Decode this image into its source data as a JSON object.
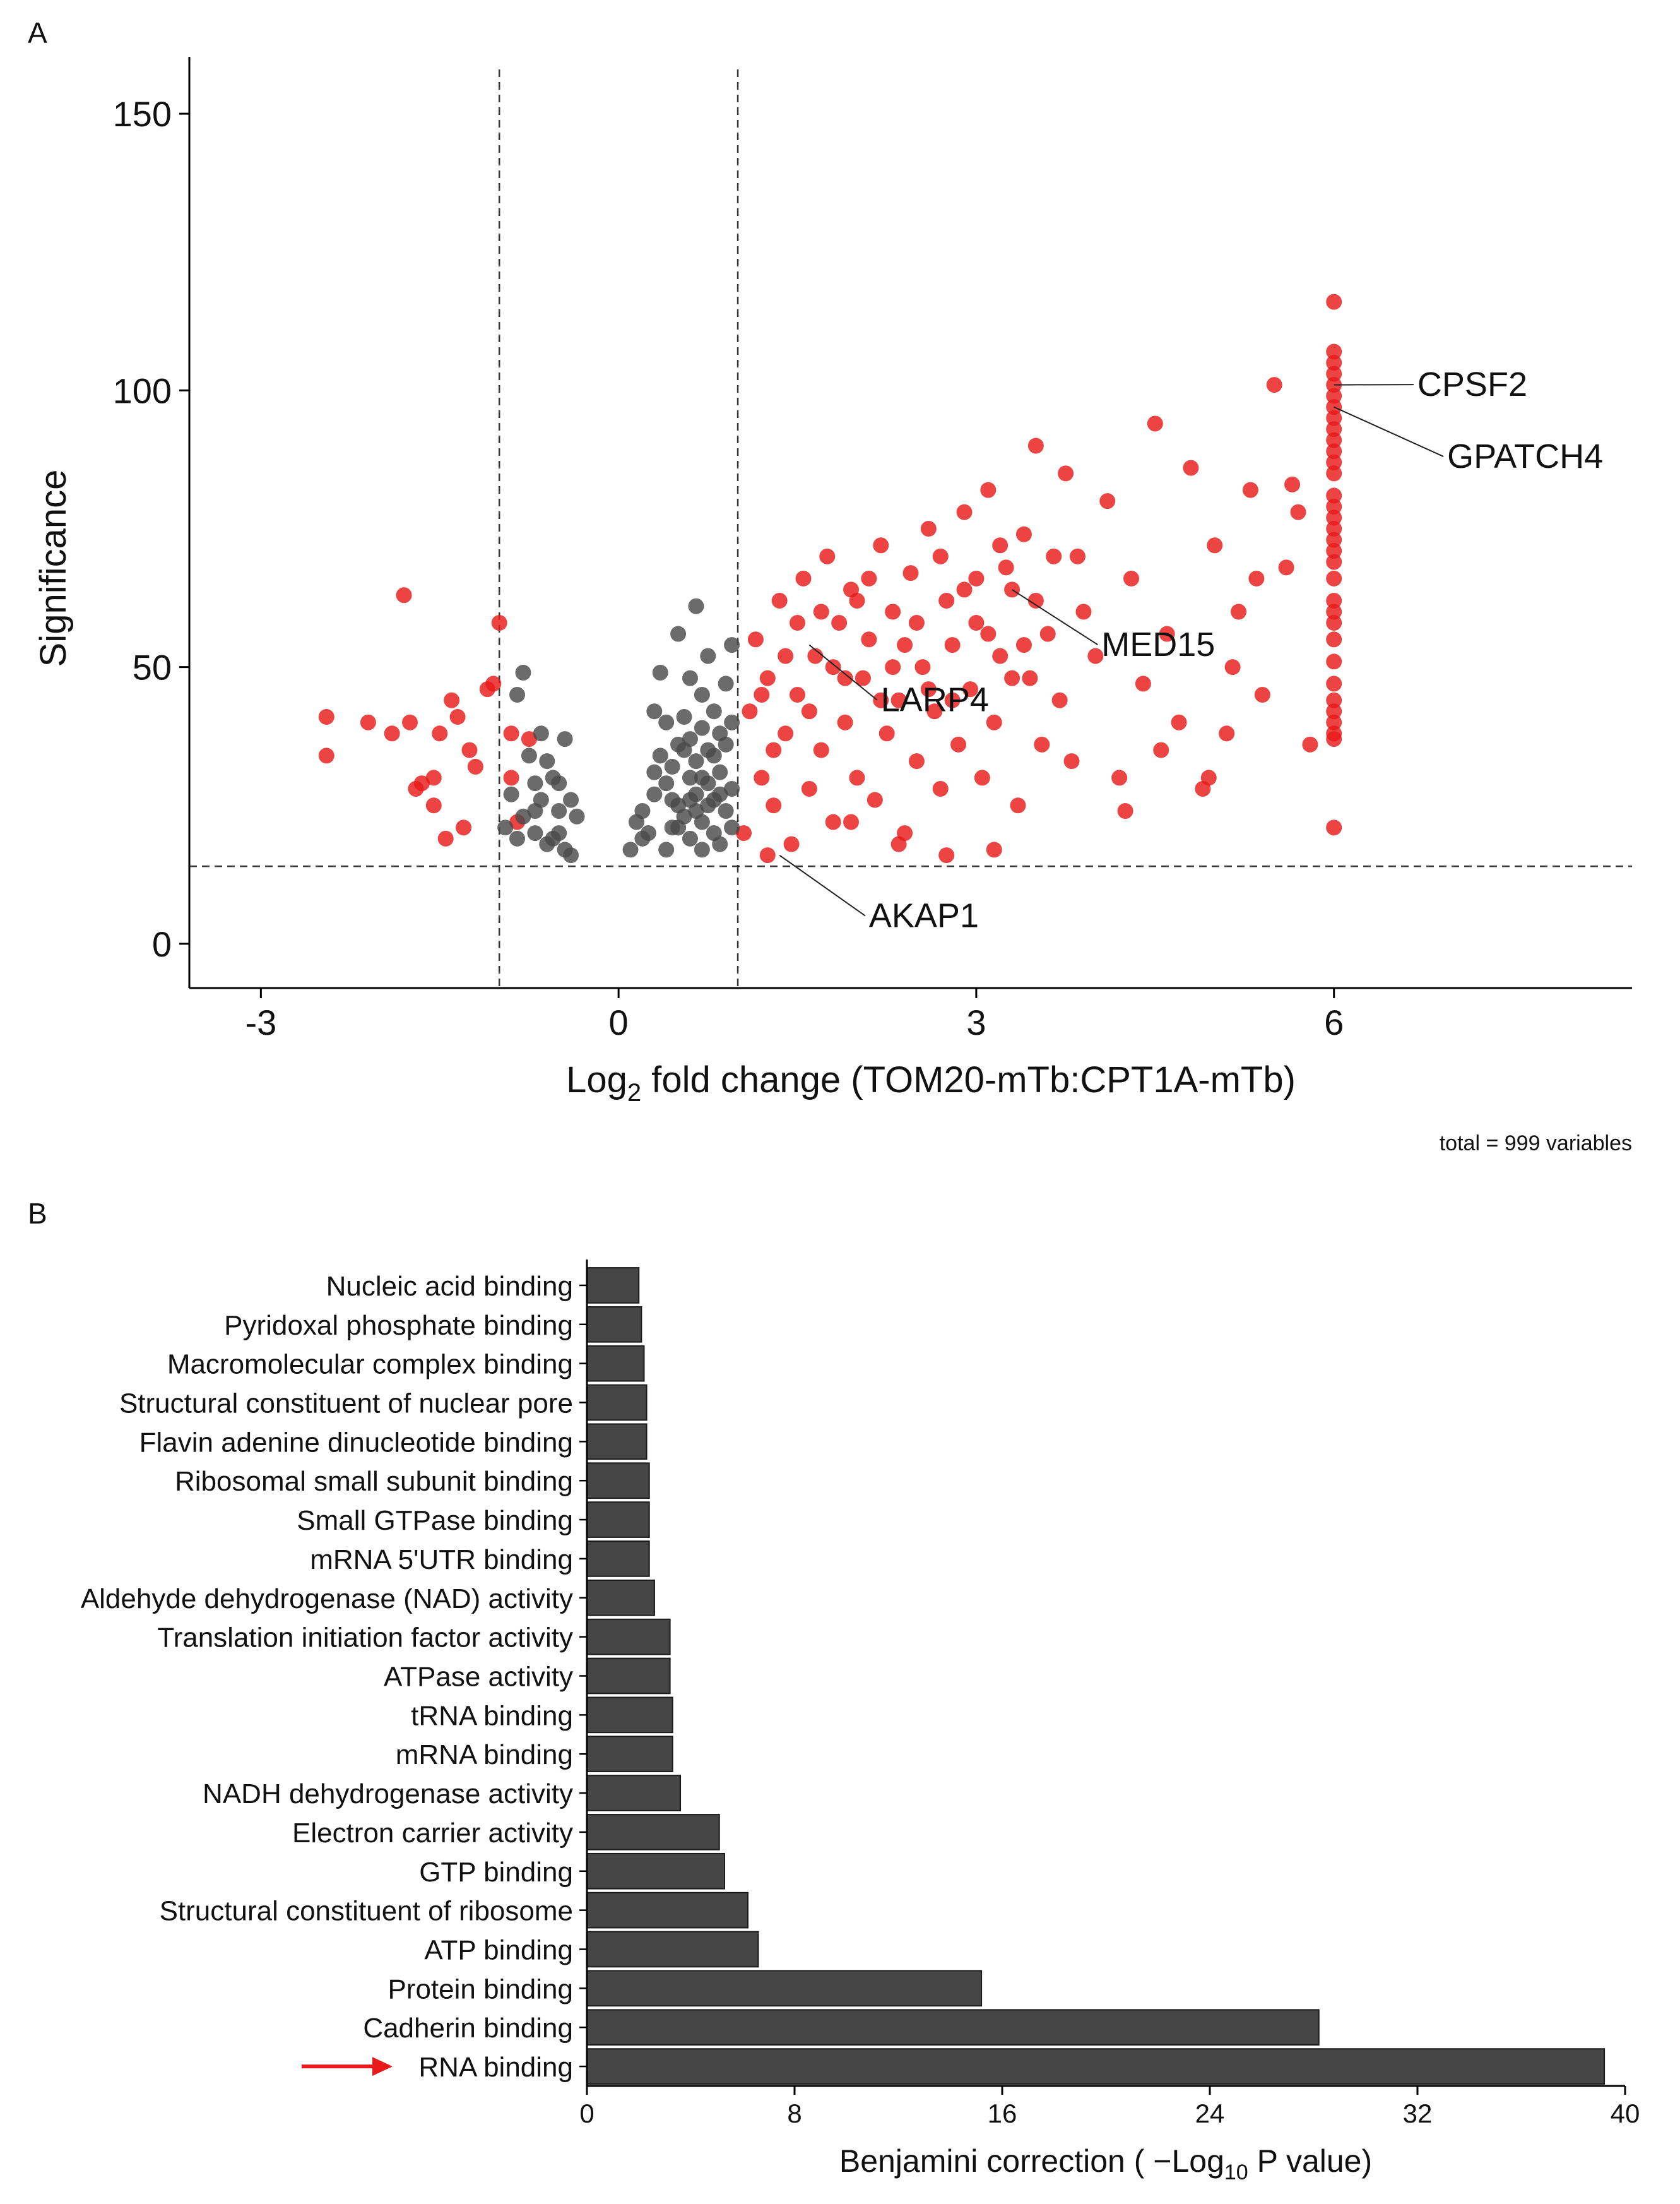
{
  "colors": {
    "up": "#e81a1a",
    "ns": "#4a4a4a",
    "bar": "#454545",
    "arrow": "#e81a1a",
    "axis": "#000000"
  },
  "chart_data": [
    {
      "panel_label": "A",
      "type": "scatter",
      "title": "",
      "xlabel_main": "Log",
      "xlabel_sub": "2",
      "xlabel_rest": " fold change (TOM20-mTb:CPT1A-mTb)",
      "ylabel": "Significance",
      "xlim": [
        -3.6,
        8.5
      ],
      "ylim": [
        -8,
        158
      ],
      "xticks": [
        -3,
        0,
        3,
        6
      ],
      "yticks": [
        0,
        50,
        100,
        150
      ],
      "vlines": [
        -1,
        1
      ],
      "hline": 14,
      "footnote": "total = 999 variables",
      "labels": [
        {
          "text": "CPSF2",
          "x": 6.0,
          "y": 101,
          "tx": 6.7,
          "ty": 99
        },
        {
          "text": "GPATCH4",
          "x": 6.0,
          "y": 97,
          "tx": 6.95,
          "ty": 86
        },
        {
          "text": "MED15",
          "x": 3.3,
          "y": 64,
          "tx": 4.05,
          "ty": 52
        },
        {
          "text": "LARP4",
          "x": 1.6,
          "y": 54,
          "tx": 2.2,
          "ty": 42
        },
        {
          "text": "AKAP1",
          "x": 1.35,
          "y": 16,
          "tx": 2.1,
          "ty": 3
        }
      ],
      "series": [
        {
          "name": "",
          "color_key": "up",
          "points": [
            [
              -2.45,
              41
            ],
            [
              -2.45,
              34
            ],
            [
              -2.1,
              40
            ],
            [
              -1.9,
              38
            ],
            [
              -1.75,
              40
            ],
            [
              -1.8,
              63
            ],
            [
              -1.65,
              29
            ],
            [
              -1.55,
              30
            ],
            [
              -1.55,
              25
            ],
            [
              -1.5,
              38
            ],
            [
              -1.4,
              44
            ],
            [
              -1.35,
              41
            ],
            [
              -1.3,
              21
            ],
            [
              -1.45,
              19
            ],
            [
              -1.2,
              32
            ],
            [
              -1.1,
              46
            ],
            [
              -1.05,
              47
            ],
            [
              -1.0,
              58
            ],
            [
              -0.9,
              38
            ],
            [
              -0.9,
              30
            ],
            [
              -0.85,
              22
            ],
            [
              -0.75,
              37
            ],
            [
              -1.7,
              28
            ],
            [
              -1.25,
              35
            ],
            [
              1.05,
              20
            ],
            [
              1.1,
              42
            ],
            [
              1.15,
              55
            ],
            [
              1.2,
              30
            ],
            [
              1.25,
              48
            ],
            [
              1.3,
              25
            ],
            [
              1.35,
              62
            ],
            [
              1.4,
              38
            ],
            [
              1.45,
              18
            ],
            [
              1.5,
              45
            ],
            [
              1.55,
              66
            ],
            [
              1.6,
              28
            ],
            [
              1.65,
              52
            ],
            [
              1.7,
              35
            ],
            [
              1.75,
              70
            ],
            [
              1.8,
              22
            ],
            [
              1.85,
              58
            ],
            [
              1.9,
              40
            ],
            [
              1.95,
              64
            ],
            [
              2.0,
              30
            ],
            [
              2.05,
              48
            ],
            [
              2.1,
              55
            ],
            [
              2.15,
              26
            ],
            [
              2.2,
              72
            ],
            [
              2.25,
              38
            ],
            [
              2.3,
              60
            ],
            [
              2.35,
              44
            ],
            [
              2.4,
              20
            ],
            [
              2.45,
              67
            ],
            [
              2.5,
              33
            ],
            [
              2.55,
              50
            ],
            [
              2.6,
              75
            ],
            [
              2.65,
              42
            ],
            [
              2.7,
              28
            ],
            [
              2.75,
              62
            ],
            [
              2.8,
              54
            ],
            [
              2.85,
              36
            ],
            [
              2.9,
              78
            ],
            [
              2.95,
              46
            ],
            [
              3.0,
              58
            ],
            [
              3.05,
              30
            ],
            [
              3.1,
              82
            ],
            [
              3.15,
              40
            ],
            [
              3.2,
              52
            ],
            [
              3.25,
              68
            ],
            [
              3.3,
              64
            ],
            [
              3.35,
              25
            ],
            [
              3.4,
              74
            ],
            [
              3.45,
              48
            ],
            [
              3.5,
              90
            ],
            [
              3.55,
              36
            ],
            [
              3.6,
              56
            ],
            [
              3.65,
              70
            ],
            [
              3.7,
              44
            ],
            [
              3.75,
              85
            ],
            [
              3.8,
              33
            ],
            [
              3.9,
              60
            ],
            [
              4.0,
              52
            ],
            [
              4.1,
              80
            ],
            [
              4.2,
              30
            ],
            [
              4.3,
              66
            ],
            [
              4.4,
              47
            ],
            [
              4.5,
              94
            ],
            [
              4.6,
              56
            ],
            [
              4.7,
              40
            ],
            [
              4.8,
              86
            ],
            [
              4.9,
              28
            ],
            [
              5.0,
              72
            ],
            [
              5.1,
              38
            ],
            [
              5.2,
              60
            ],
            [
              5.3,
              82
            ],
            [
              5.4,
              45
            ],
            [
              5.5,
              101
            ],
            [
              5.6,
              68
            ],
            [
              5.7,
              78
            ],
            [
              5.8,
              36
            ],
            [
              5.15,
              50
            ],
            [
              4.25,
              24
            ],
            [
              3.85,
              70
            ],
            [
              3.15,
              17
            ],
            [
              2.35,
              18
            ],
            [
              1.95,
              22
            ],
            [
              1.25,
              16
            ],
            [
              2.75,
              16
            ],
            [
              4.55,
              35
            ],
            [
              4.95,
              30
            ],
            [
              5.35,
              66
            ],
            [
              5.65,
              83
            ],
            [
              1.3,
              35
            ],
            [
              1.5,
              58
            ],
            [
              1.7,
              60
            ],
            [
              1.9,
              48
            ],
            [
              2.1,
              66
            ],
            [
              2.3,
              50
            ],
            [
              2.5,
              58
            ],
            [
              2.7,
              70
            ],
            [
              2.9,
              64
            ],
            [
              3.1,
              56
            ],
            [
              3.3,
              48
            ],
            [
              3.5,
              62
            ],
            [
              1.2,
              45
            ],
            [
              1.4,
              52
            ],
            [
              1.6,
              42
            ],
            [
              1.8,
              50
            ],
            [
              2.0,
              62
            ],
            [
              2.2,
              44
            ],
            [
              2.4,
              54
            ],
            [
              2.6,
              46
            ],
            [
              2.8,
              44
            ],
            [
              3.0,
              66
            ],
            [
              3.2,
              72
            ],
            [
              3.4,
              54
            ],
            [
              6,
              116
            ],
            [
              6,
              107
            ],
            [
              6,
              105
            ],
            [
              6,
              103
            ],
            [
              6,
              101
            ],
            [
              6,
              99
            ],
            [
              6,
              97
            ],
            [
              6,
              95
            ],
            [
              6,
              93
            ],
            [
              6,
              91
            ],
            [
              6,
              89
            ],
            [
              6,
              87
            ],
            [
              6,
              85
            ],
            [
              6,
              81
            ],
            [
              6,
              79
            ],
            [
              6,
              77
            ],
            [
              6,
              75
            ],
            [
              6,
              73
            ],
            [
              6,
              71
            ],
            [
              6,
              69
            ],
            [
              6,
              66
            ],
            [
              6,
              62
            ],
            [
              6,
              60
            ],
            [
              6,
              58
            ],
            [
              6,
              55
            ],
            [
              6,
              51
            ],
            [
              6,
              47
            ],
            [
              6,
              44
            ],
            [
              6,
              42
            ],
            [
              6,
              40
            ],
            [
              6,
              38
            ],
            [
              6,
              37
            ],
            [
              6,
              21
            ]
          ]
        },
        {
          "name": "",
          "color_key": "ns",
          "points": [
            [
              -0.95,
              21
            ],
            [
              -0.9,
              27
            ],
            [
              -0.85,
              45
            ],
            [
              -0.8,
              49
            ],
            [
              -0.75,
              34
            ],
            [
              -0.7,
              29
            ],
            [
              -0.65,
              38
            ],
            [
              -0.6,
              18
            ],
            [
              -0.55,
              30
            ],
            [
              -0.5,
              24
            ],
            [
              -0.45,
              37
            ],
            [
              -0.4,
              16
            ],
            [
              -0.85,
              19
            ],
            [
              -0.7,
              20
            ],
            [
              -0.65,
              26
            ],
            [
              -0.55,
              19
            ],
            [
              -0.5,
              20
            ],
            [
              -0.45,
              17
            ],
            [
              -0.6,
              33
            ],
            [
              -0.35,
              23
            ],
            [
              -0.8,
              23
            ],
            [
              -0.7,
              24
            ],
            [
              -0.5,
              29
            ],
            [
              -0.4,
              26
            ],
            [
              0.1,
              17
            ],
            [
              0.15,
              22
            ],
            [
              0.2,
              24
            ],
            [
              0.25,
              20
            ],
            [
              0.3,
              27
            ],
            [
              0.3,
              42
            ],
            [
              0.35,
              34
            ],
            [
              0.35,
              49
            ],
            [
              0.4,
              17
            ],
            [
              0.4,
              29
            ],
            [
              0.4,
              40
            ],
            [
              0.45,
              21
            ],
            [
              0.45,
              32
            ],
            [
              0.5,
              36
            ],
            [
              0.5,
              25
            ],
            [
              0.5,
              56
            ],
            [
              0.55,
              23
            ],
            [
              0.55,
              41
            ],
            [
              0.6,
              19
            ],
            [
              0.6,
              30
            ],
            [
              0.6,
              37
            ],
            [
              0.6,
              48
            ],
            [
              0.65,
              27
            ],
            [
              0.65,
              33
            ],
            [
              0.65,
              61
            ],
            [
              0.7,
              17
            ],
            [
              0.7,
              22
            ],
            [
              0.7,
              39
            ],
            [
              0.7,
              45
            ],
            [
              0.75,
              25
            ],
            [
              0.75,
              29
            ],
            [
              0.75,
              52
            ],
            [
              0.8,
              20
            ],
            [
              0.8,
              34
            ],
            [
              0.8,
              42
            ],
            [
              0.85,
              18
            ],
            [
              0.85,
              31
            ],
            [
              0.85,
              38
            ],
            [
              0.9,
              24
            ],
            [
              0.9,
              36
            ],
            [
              0.9,
              47
            ],
            [
              0.95,
              21
            ],
            [
              0.95,
              28
            ],
            [
              0.95,
              40
            ],
            [
              0.95,
              54
            ],
            [
              0.3,
              31
            ],
            [
              0.2,
              19
            ],
            [
              0.45,
              26
            ],
            [
              0.55,
              35
            ],
            [
              0.65,
              24
            ],
            [
              0.75,
              35
            ],
            [
              0.85,
              27
            ],
            [
              0.5,
              21
            ],
            [
              0.6,
              26
            ],
            [
              0.7,
              30
            ],
            [
              0.8,
              26
            ]
          ]
        }
      ]
    },
    {
      "panel_label": "B",
      "type": "bar",
      "orientation": "horizontal",
      "title": "",
      "xlabel_main": "Benjamini correction ( −Log",
      "xlabel_sub": "10",
      "xlabel_rest": " P value)",
      "ylabel": "",
      "xlim": [
        0,
        40
      ],
      "xticks": [
        0,
        8,
        16,
        24,
        32,
        40
      ],
      "highlight_category": "RNA binding",
      "categories": [
        "Nucleic acid binding",
        "Pyridoxal phosphate binding",
        "Macromolecular complex binding",
        "Structural constituent of nuclear pore",
        "Flavin adenine dinucleotide binding",
        "Ribosomal small subunit binding",
        "Small GTPase binding",
        "mRNA 5'UTR binding",
        "Aldehyde dehydrogenase (NAD) activity",
        "Translation initiation factor activity",
        "ATPase activity",
        "tRNA binding",
        "mRNA binding",
        "NADH dehydrogenase activity",
        "Electron carrier activity",
        "GTP binding",
        "Structural constituent of ribosome",
        "ATP binding",
        "Protein binding",
        "Cadherin binding",
        "RNA binding"
      ],
      "values": [
        2.0,
        2.1,
        2.2,
        2.3,
        2.3,
        2.4,
        2.4,
        2.4,
        2.6,
        3.2,
        3.2,
        3.3,
        3.3,
        3.6,
        5.1,
        5.3,
        6.2,
        6.6,
        15.2,
        28.2,
        39.2
      ]
    }
  ]
}
